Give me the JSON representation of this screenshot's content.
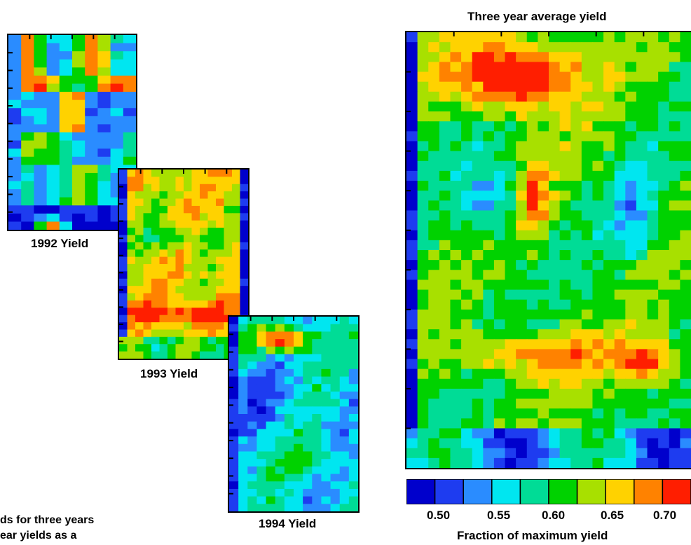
{
  "chart_data": [
    {
      "type": "heatmap",
      "title": "1992 Yield",
      "zlabel": "Fraction of maximum yield"
    },
    {
      "type": "heatmap",
      "title": "1993 Yield",
      "zlabel": "Fraction of maximum yield"
    },
    {
      "type": "heatmap",
      "title": "1994 Yield",
      "zlabel": "Fraction of maximum yield"
    },
    {
      "type": "heatmap",
      "title": "Three year average yield",
      "zlabel": "Fraction of maximum yield",
      "colorbar": {
        "ticks": [
          "0.50",
          "0.55",
          "0.60",
          "0.65",
          "0.70"
        ],
        "label": "Fraction of maximum yield",
        "colors": [
          "#0000cc",
          "#1e3cf0",
          "#2a8cff",
          "#00e6f0",
          "#00dc96",
          "#00d200",
          "#a8e000",
          "#ffd200",
          "#ff8200",
          "#ff1e00"
        ]
      }
    }
  ],
  "text": {
    "caption_line1": "ds for three years",
    "caption_line2": "ear yields as a"
  }
}
